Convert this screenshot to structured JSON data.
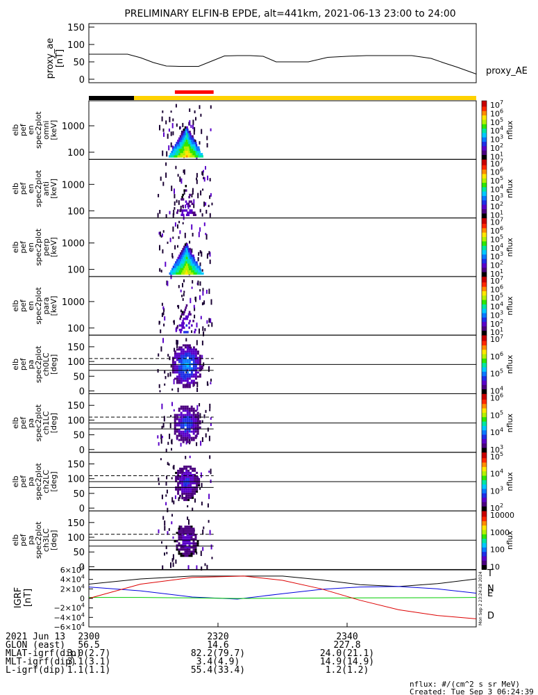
{
  "title": "PRELIMINARY ELFIN-B EPDE, alt=441km, 2021-06-13 23:00 to 24:00",
  "proxy_ae": {
    "ylabel_line1": "proxy_ae",
    "ylabel_line2": "[nT]",
    "series_label": "proxy_AE",
    "yticks": [
      "150",
      "100",
      "50",
      "0"
    ],
    "ylim": [
      -10,
      160
    ],
    "minutes": [
      0,
      4,
      6,
      8,
      10,
      12,
      14,
      17,
      19,
      21,
      23,
      25,
      27,
      29,
      31,
      34,
      37,
      40,
      43,
      46,
      50,
      53,
      55,
      57,
      60
    ],
    "values": [
      72,
      72,
      72,
      62,
      48,
      38,
      37,
      37,
      52,
      67,
      68,
      68,
      66,
      50,
      50,
      50,
      63,
      66,
      68,
      68,
      68,
      60,
      47,
      35,
      15
    ]
  },
  "flag_bar": {
    "colors": {
      "science": "#000000",
      "fast": "#ffd200",
      "selected": "#ff0000"
    },
    "segments_minutes": [
      [
        0,
        7,
        "science"
      ],
      [
        7,
        60,
        "fast"
      ]
    ],
    "selected_minutes": [
      13,
      19
    ]
  },
  "energy_panels": [
    {
      "id": "omni",
      "ylabel": [
        "elb",
        "pef",
        "en",
        "spec2plot",
        "omni",
        "[keV]"
      ],
      "cbar_ticks": [
        "10^7",
        "10^6",
        "10^5",
        "10^4",
        "10^3",
        "10^2",
        "10^1"
      ],
      "intensity": 1.0
    },
    {
      "id": "anti",
      "ylabel": [
        "elb",
        "pef",
        "en",
        "spec2plot",
        "anti",
        "[keV]"
      ],
      "cbar_ticks": [
        "10^7",
        "10^6",
        "10^5",
        "10^4",
        "10^3",
        "10^2",
        "10^1"
      ],
      "intensity": 0.25
    },
    {
      "id": "perp",
      "ylabel": [
        "elb",
        "pef",
        "en",
        "spec2plot",
        "perp",
        "[keV]"
      ],
      "cbar_ticks": [
        "10^7",
        "10^6",
        "10^5",
        "10^4",
        "10^3",
        "10^2",
        "10^1"
      ],
      "intensity": 0.95
    },
    {
      "id": "para",
      "ylabel": [
        "elb",
        "pef",
        "en",
        "spec2plot",
        "para",
        "[keV]"
      ],
      "cbar_ticks": [
        "10^7",
        "10^6",
        "10^5",
        "10^4",
        "10^3",
        "10^2",
        "10^1"
      ],
      "intensity": 0.35
    }
  ],
  "energy_yticks": [
    "1000",
    "100"
  ],
  "pa_panels": [
    {
      "id": "ch0LC",
      "ylabel": [
        "elb",
        "pef",
        "pa",
        "spec2plot",
        "ch0LC",
        "[deg]"
      ],
      "cbar_ticks": [
        "10^7",
        "10^6",
        "10^5",
        "10^4"
      ],
      "intensity": 0.9
    },
    {
      "id": "ch1LC",
      "ylabel": [
        "elb",
        "pef",
        "pa",
        "spec2plot",
        "ch1LC",
        "[deg]"
      ],
      "cbar_ticks": [
        "10^6",
        "10^5",
        "10^4",
        "10^3"
      ],
      "intensity": 0.7
    },
    {
      "id": "ch2LC",
      "ylabel": [
        "elb",
        "pef",
        "pa",
        "spec2plot",
        "ch2LC",
        "[deg]"
      ],
      "cbar_ticks": [
        "10^5",
        "10^4",
        "10^3",
        "10^2"
      ],
      "intensity": 0.6
    },
    {
      "id": "ch3LC",
      "ylabel": [
        "elb",
        "pef",
        "pa",
        "spec2plot",
        "ch3LC",
        "[deg]"
      ],
      "cbar_ticks": [
        "10000",
        "1000",
        "100",
        "10"
      ],
      "intensity": 0.5
    }
  ],
  "pa_yticks": [
    "150",
    "100",
    "50",
    "0"
  ],
  "colorbar_label": "nflux",
  "igrf": {
    "ylabel_line1": "IGRF",
    "ylabel_line2": "[nT]",
    "yticks": [
      "6×10^4",
      "4×10^4",
      "2×10^4",
      "0",
      "−2×10^4",
      "−4×10^4",
      "−6×10^4"
    ],
    "ylim": [
      -60000,
      60000
    ],
    "components": [
      {
        "name": "T",
        "color": "#000000",
        "minutes": [
          0,
          8,
          16,
          24,
          30,
          36,
          42,
          48,
          54,
          60
        ],
        "values": [
          30000,
          41000,
          47000,
          47000,
          47000,
          39000,
          29000,
          25000,
          31000,
          41000
        ]
      },
      {
        "name": "N",
        "color": "#0000dd",
        "minutes": [
          0,
          8,
          16,
          23,
          30,
          36,
          42,
          48,
          54,
          60
        ],
        "values": [
          24000,
          16000,
          3000,
          -1500,
          10000,
          19000,
          24000,
          25000,
          20000,
          11000
        ]
      },
      {
        "name": "E",
        "color": "#00cc00",
        "minutes": [
          0,
          8,
          16,
          23,
          30,
          42,
          54,
          60
        ],
        "values": [
          2000,
          2000,
          1000,
          -200,
          500,
          1000,
          1500,
          2000
        ]
      },
      {
        "name": "D",
        "color": "#dd0000",
        "minutes": [
          0,
          8,
          16,
          24,
          30,
          36,
          42,
          48,
          54,
          60
        ],
        "values": [
          0,
          30000,
          44000,
          47000,
          38000,
          20000,
          -4000,
          -24000,
          -36000,
          -43000
        ]
      }
    ],
    "side_text": "Mon Sep  2 23:24:28 2024"
  },
  "footer": {
    "rows": [
      {
        "label": "2021 Jun 13",
        "values": [
          "2300",
          "2320",
          "2340"
        ]
      },
      {
        "label": "GLON (east)",
        "values": [
          "56.5",
          "14.6",
          "227.8"
        ]
      },
      {
        "label": "MLAT-igrf(dip)",
        "values": [
          "3.0(2.7)",
          "82.2(79.7)",
          "24.0(21.1)"
        ]
      },
      {
        "label": "MLT-igrf(dip)",
        "values": [
          "3.1(3.1)",
          "3.4(4.9)",
          "14.9(14.9)"
        ]
      },
      {
        "label": "L-igrf(dip)",
        "values": [
          "1.1(1.1)",
          "55.4(33.4)",
          "1.2(1.2)"
        ]
      }
    ],
    "units": "nflux: #/(cm^2 s sr MeV)",
    "created": "Created: Tue Sep  3 06:24:39 2024"
  }
}
